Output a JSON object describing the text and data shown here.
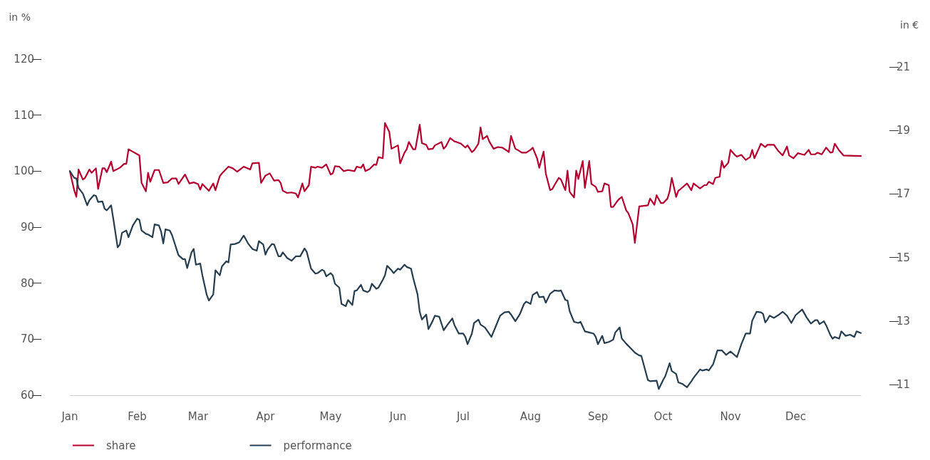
{
  "chart_data": {
    "type": "line",
    "ylabel": "in %",
    "y2label": "in €",
    "xlim": [
      "--01-01",
      "--12-31"
    ],
    "xticks": [
      {
        "value": "--01-01",
        "label": "Jan"
      },
      {
        "value": "--02-01",
        "label": "Feb"
      },
      {
        "value": "--03-01",
        "label": "Mar"
      },
      {
        "value": "--04-01",
        "label": "Apr"
      },
      {
        "value": "--05-01",
        "label": "May"
      },
      {
        "value": "--06-01",
        "label": "Jun"
      },
      {
        "value": "--07-01",
        "label": "Jul"
      },
      {
        "value": "--08-01",
        "label": "Aug"
      },
      {
        "value": "--09-01",
        "label": "Sep"
      },
      {
        "value": "--10-01",
        "label": "Oct"
      },
      {
        "value": "--11-01",
        "label": "Nov"
      },
      {
        "value": "--12-01",
        "label": "Dec"
      }
    ],
    "ylim": [
      60,
      120
    ],
    "yticks": [
      60,
      70,
      80,
      90,
      100,
      110,
      120
    ],
    "y2lim": [
      11,
      21
    ],
    "y2ticks": [
      11,
      13,
      15,
      17,
      19,
      21
    ],
    "grid": false,
    "legend": "bottom left",
    "marker": "none",
    "line_style": "solid",
    "series": [
      {
        "name": "share",
        "color": "#b4002f",
        "x": [
          "--01-01",
          "--01-03",
          "--01-04",
          "--01-05",
          "--01-07",
          "--01-08",
          "--01-10",
          "--01-11",
          "--01-13",
          "--01-14",
          "--01-16",
          "--01-17",
          "--01-18",
          "--01-20",
          "--01-21",
          "--01-24",
          "--01-26",
          "--01-27",
          "--01-28",
          "--02-02",
          "--02-03",
          "--02-05",
          "--02-06",
          "--02-07",
          "--02-09",
          "--02-11",
          "--02-13",
          "--02-15",
          "--02-17",
          "--02-19",
          "--02-20",
          "--02-23",
          "--02-25",
          "--02-27",
          "--03-01",
          "--03-02",
          "--03-03",
          "--03-05",
          "--03-06",
          "--03-08",
          "--03-09",
          "--03-11",
          "--03-12",
          "--03-15",
          "--03-17",
          "--03-19",
          "--03-22",
          "--03-25",
          "--03-26",
          "--03-29",
          "--03-30",
          "--04-01",
          "--04-03",
          "--04-05",
          "--04-07",
          "--04-08",
          "--04-09",
          "--04-11",
          "--04-13",
          "--04-15",
          "--04-16",
          "--04-18",
          "--04-19",
          "--04-21",
          "--04-22",
          "--04-24",
          "--04-25",
          "--04-27",
          "--04-29",
          "--05-01",
          "--05-02",
          "--05-03",
          "--05-05",
          "--05-07",
          "--05-09",
          "--05-12",
          "--05-13",
          "--05-15",
          "--05-16",
          "--05-17",
          "--05-19",
          "--05-21",
          "--05-22",
          "--05-23",
          "--05-25",
          "--05-26",
          "--05-28",
          "--05-29",
          "--06-01",
          "--06-02",
          "--06-04",
          "--06-05",
          "--06-06",
          "--06-08",
          "--06-09",
          "--06-11",
          "--06-12",
          "--06-14",
          "--06-15",
          "--06-17",
          "--06-18",
          "--06-21",
          "--06-22",
          "--06-23",
          "--06-25",
          "--06-27",
          "--06-28",
          "--06-30",
          "--07-02",
          "--07-03",
          "--07-05",
          "--07-06",
          "--07-08",
          "--07-09",
          "--07-10",
          "--07-12",
          "--07-13",
          "--07-15",
          "--07-17",
          "--07-19",
          "--07-21",
          "--07-22",
          "--07-23",
          "--07-25",
          "--07-26",
          "--07-28",
          "--07-30",
          "--08-01",
          "--08-02",
          "--08-04",
          "--08-05",
          "--08-07",
          "--08-08",
          "--08-10",
          "--08-11",
          "--08-12",
          "--08-14",
          "--08-15",
          "--08-17",
          "--08-18",
          "--08-19",
          "--08-21",
          "--08-22",
          "--08-23",
          "--08-25",
          "--08-26",
          "--08-28",
          "--08-29",
          "--08-31",
          "--09-01",
          "--09-03",
          "--09-04",
          "--09-06",
          "--09-07",
          "--09-08",
          "--09-10",
          "--09-11",
          "--09-12",
          "--09-14",
          "--09-15",
          "--09-17",
          "--09-18",
          "--09-20",
          "--09-24",
          "--09-25",
          "--09-27",
          "--09-28",
          "--09-30",
          "--10-01",
          "--10-03",
          "--10-04",
          "--10-05",
          "--10-07",
          "--10-08",
          "--10-09",
          "--10-12",
          "--10-14",
          "--10-15",
          "--10-18",
          "--10-20",
          "--10-21",
          "--10-22",
          "--10-24",
          "--10-25",
          "--10-27",
          "--10-28",
          "--10-29",
          "--10-31",
          "--11-01",
          "--11-03",
          "--11-04",
          "--11-06",
          "--11-08",
          "--11-10",
          "--11-11",
          "--11-12",
          "--11-14",
          "--11-15",
          "--11-17",
          "--11-18",
          "--11-21",
          "--11-23",
          "--11-25",
          "--11-27",
          "--11-28",
          "--11-30",
          "--12-02",
          "--12-04",
          "--12-05",
          "--12-07",
          "--12-08",
          "--12-10",
          "--12-11",
          "--12-13",
          "--12-15",
          "--12-17",
          "--12-18",
          "--12-19",
          "--12-21",
          "--12-23",
          "--12-31"
        ],
        "values": [
          100,
          96.6,
          95.4,
          100.3,
          98.5,
          98.8,
          100.3,
          99.7,
          100.5,
          96.8,
          100.5,
          100.5,
          99.8,
          101.7,
          100,
          100.6,
          101.3,
          101.3,
          103.9,
          102.8,
          97.9,
          96.4,
          99.7,
          98.1,
          100.2,
          100.2,
          97.9,
          98,
          98.7,
          98.7,
          97.7,
          99.4,
          97.8,
          98,
          97.7,
          96.7,
          97.7,
          96.9,
          96.5,
          97.8,
          96.6,
          99.1,
          99.6,
          100.8,
          100.5,
          99.9,
          100.8,
          100.3,
          101.4,
          101.5,
          97.9,
          99.2,
          99.6,
          98.3,
          98.4,
          97.9,
          96.5,
          96.1,
          96.2,
          96,
          95.3,
          97.8,
          96.4,
          97.5,
          100.8,
          100.6,
          100.8,
          100.6,
          101.2,
          99.4,
          99.6,
          100.9,
          100.8,
          100,
          100.2,
          100,
          100.8,
          100.6,
          101.2,
          100,
          100.4,
          101.2,
          101.1,
          102.5,
          102.3,
          108.6,
          107,
          104,
          104.6,
          101.4,
          103.3,
          103.9,
          105.2,
          103.9,
          103.9,
          108.3,
          105,
          104.7,
          103.9,
          104,
          104.6,
          105.2,
          104,
          104.4,
          105.9,
          105.3,
          105.2,
          104.9,
          104.2,
          104.6,
          103.4,
          103.7,
          104.9,
          107.8,
          105.7,
          106.3,
          105.3,
          104,
          104.3,
          104.2,
          103.7,
          103.4,
          106.3,
          104,
          103.8,
          103.3,
          103.3,
          103.8,
          104.2,
          102.3,
          100.6,
          103.5,
          99.6,
          96.6,
          96.8,
          97.5,
          98.8,
          98.5,
          96.6,
          100.1,
          96.3,
          95.3,
          100.1,
          98.6,
          101.8,
          97,
          101.8,
          97.7,
          97.2,
          96.3,
          96.4,
          97.8,
          97.5,
          93.6,
          93.6,
          94.7,
          95.1,
          95.4,
          93,
          92.5,
          90.5,
          87.2,
          93.7,
          93.9,
          95.1,
          94,
          95.7,
          94.3,
          94.3,
          95.1,
          96.4,
          98.8,
          95.4,
          96.5,
          96.8,
          97.8,
          96.6,
          97.8,
          96.9,
          97.5,
          97.5,
          98.1,
          97.7,
          98.8,
          99,
          101.8,
          100.6,
          101.5,
          103.8,
          102.9,
          102.6,
          102.9,
          102,
          102.5,
          103.8,
          102.3,
          104,
          104.9,
          104.3,
          104.7,
          104.7,
          103.6,
          102.8,
          104.4,
          102.8,
          102.3,
          103.2,
          103,
          102.9,
          103.8,
          103,
          103,
          103.3,
          103,
          104.2,
          103.3,
          103.4,
          104.9,
          103.7,
          102.8,
          102.7
        ]
      },
      {
        "name": "performance",
        "color": "#253d4f",
        "x": [
          "--01-01",
          "--01-03",
          "--01-04",
          "--01-05",
          "--01-07",
          "--01-09",
          "--01-10",
          "--01-12",
          "--01-13",
          "--01-14",
          "--01-16",
          "--01-17",
          "--01-18",
          "--01-20",
          "--01-21",
          "--01-23",
          "--01-24",
          "--01-25",
          "--01-27",
          "--01-28",
          "--01-30",
          "--02-01",
          "--02-02",
          "--02-03",
          "--02-05",
          "--02-06",
          "--02-08",
          "--02-09",
          "--02-11",
          "--02-12",
          "--02-13",
          "--02-14",
          "--02-16",
          "--02-17",
          "--02-20",
          "--02-22",
          "--02-23",
          "--02-24",
          "--02-26",
          "--02-27",
          "--02-28",
          "--03-02",
          "--03-03",
          "--03-05",
          "--03-06",
          "--03-08",
          "--03-09",
          "--03-11",
          "--03-12",
          "--03-14",
          "--03-15",
          "--03-16",
          "--03-18",
          "--03-20",
          "--03-22",
          "--03-24",
          "--03-26",
          "--03-28",
          "--03-29",
          "--03-31",
          "--04-01",
          "--04-02",
          "--04-04",
          "--04-05",
          "--04-07",
          "--04-08",
          "--04-09",
          "--04-11",
          "--04-13",
          "--04-15",
          "--04-17",
          "--04-19",
          "--04-20",
          "--04-22",
          "--04-24",
          "--04-25",
          "--04-27",
          "--04-28",
          "--04-29",
          "--05-01",
          "--05-02",
          "--05-03",
          "--05-05",
          "--05-06",
          "--05-08",
          "--05-09",
          "--05-11",
          "--05-12",
          "--05-13",
          "--05-15",
          "--05-16",
          "--05-18",
          "--05-19",
          "--05-20",
          "--05-22",
          "--05-23",
          "--05-25",
          "--05-26",
          "--05-27",
          "--05-29",
          "--05-30",
          "--06-01",
          "--06-02",
          "--06-04",
          "--06-05",
          "--06-07",
          "--06-08",
          "--06-10",
          "--06-11",
          "--06-12",
          "--06-14",
          "--06-15",
          "--06-17",
          "--06-18",
          "--06-20",
          "--06-22",
          "--06-24",
          "--06-26",
          "--06-27",
          "--06-29",
          "--07-01",
          "--07-02",
          "--07-03",
          "--07-05",
          "--07-06",
          "--07-08",
          "--07-09",
          "--07-11",
          "--07-14",
          "--07-16",
          "--07-18",
          "--07-20",
          "--07-22",
          "--07-23",
          "--07-25",
          "--07-27",
          "--07-29",
          "--07-30",
          "--08-01",
          "--08-02",
          "--08-04",
          "--08-05",
          "--08-07",
          "--08-08",
          "--08-10",
          "--08-12",
          "--08-14",
          "--08-15",
          "--08-17",
          "--08-18",
          "--08-19",
          "--08-21",
          "--08-23",
          "--08-24",
          "--08-26",
          "--08-28",
          "--08-30",
          "--08-31",
          "--09-01",
          "--09-03",
          "--09-04",
          "--09-06",
          "--09-08",
          "--09-09",
          "--09-11",
          "--09-12",
          "--09-14",
          "--09-17",
          "--09-18",
          "--09-20",
          "--09-21",
          "--09-24",
          "--09-25",
          "--09-28",
          "--09-29",
          "--10-01",
          "--10-02",
          "--10-04",
          "--10-05",
          "--10-07",
          "--10-08",
          "--10-10",
          "--10-12",
          "--10-14",
          "--10-15",
          "--10-18",
          "--10-19",
          "--10-21",
          "--10-22",
          "--10-24",
          "--10-26",
          "--10-28",
          "--10-30",
          "--11-01",
          "--11-04",
          "--11-06",
          "--11-08",
          "--11-10",
          "--11-11",
          "--11-13",
          "--11-15",
          "--11-16",
          "--11-17",
          "--11-18",
          "--11-19",
          "--11-21",
          "--11-23",
          "--11-25",
          "--11-27",
          "--11-29",
          "--12-01",
          "--12-04",
          "--12-06",
          "--12-08",
          "--12-10",
          "--12-11",
          "--12-12",
          "--12-14",
          "--12-15",
          "--12-17",
          "--12-18",
          "--12-19",
          "--12-21",
          "--12-22",
          "--12-24",
          "--12-26",
          "--12-28",
          "--12-29",
          "--12-31"
        ],
        "values": [
          100,
          98.8,
          98.7,
          97,
          96,
          93.9,
          94.8,
          95.7,
          95.6,
          94.5,
          94.6,
          93.3,
          93,
          93.9,
          91.5,
          86.4,
          86.9,
          89,
          89.4,
          88.2,
          90.3,
          91.5,
          91.3,
          89.4,
          88.8,
          88.7,
          88.2,
          90.5,
          90.3,
          89.2,
          87.1,
          89.6,
          89.4,
          88.6,
          85,
          84.3,
          84.3,
          82.7,
          85.5,
          86.1,
          83.3,
          83.5,
          81.4,
          77.9,
          76.9,
          78,
          82.3,
          81.4,
          83,
          83.9,
          83.7,
          86.9,
          87,
          87.3,
          88.5,
          87.1,
          86.1,
          85.8,
          87.5,
          86.9,
          85.1,
          86,
          87,
          86.9,
          84.8,
          84.8,
          85.5,
          84.5,
          84,
          84.8,
          84.8,
          86.2,
          85.6,
          82.6,
          81.7,
          81.8,
          82.4,
          82.2,
          81.2,
          81.8,
          81.4,
          79.9,
          79.2,
          76.3,
          75.9,
          77,
          76.1,
          78.6,
          78.7,
          79.7,
          78.7,
          78.4,
          78.7,
          79.9,
          79,
          79.2,
          80.6,
          81.4,
          83.1,
          82.3,
          81.8,
          82.6,
          82.4,
          83.3,
          82.9,
          82.6,
          80.9,
          78,
          74.9,
          73.5,
          74.4,
          71.8,
          73.3,
          74.2,
          74,
          71.6,
          72.7,
          73.7,
          72.5,
          71,
          71,
          70.4,
          69.1,
          71,
          72.9,
          73.5,
          72.6,
          72.1,
          70.4,
          72.3,
          74.2,
          74.8,
          74.9,
          74.4,
          73.2,
          74.4,
          76.3,
          76.7,
          76.3,
          77.9,
          78.4,
          77.5,
          77.6,
          76.5,
          78.1,
          78.7,
          78.6,
          78.7,
          77,
          76.9,
          75,
          73.1,
          72.9,
          73.1,
          71.4,
          71.2,
          71,
          70.4,
          69.1,
          70.6,
          69.3,
          69.5,
          69.9,
          71.2,
          72.1,
          70.1,
          69.2,
          68,
          67.6,
          67.1,
          67,
          62.7,
          62.5,
          62.6,
          61.1,
          62.7,
          63.4,
          65.7,
          64.3,
          63.8,
          62.3,
          62,
          61.4,
          62.5,
          63.1,
          64.6,
          64.4,
          64.6,
          64.4,
          65.5,
          68,
          68,
          67.2,
          67.8,
          66.8,
          69.1,
          71,
          71,
          73.3,
          74.9,
          74.8,
          74.5,
          73,
          73.5,
          74.2,
          73.8,
          74.3,
          74.9,
          74.2,
          72.9,
          74.3,
          75.3,
          73.9,
          72.8,
          73.4,
          73.4,
          72.7,
          73.2,
          72.5,
          70.7,
          70.1,
          70.4,
          70.1,
          71.4,
          70.6,
          70.8,
          70.4,
          71.4,
          71.1
        ]
      }
    ]
  }
}
